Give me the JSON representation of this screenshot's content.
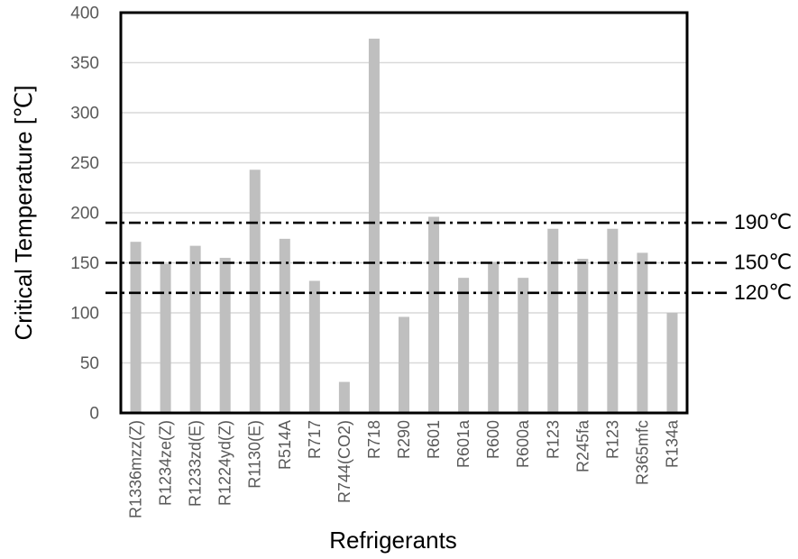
{
  "chart_data": {
    "type": "bar",
    "title": "",
    "xlabel": "Refrigerants",
    "ylabel": "Critical Temperature [℃]",
    "categories": [
      "R1336mzz(Z)",
      "R1234ze(Z)",
      "R1233zd(E)",
      "R1224yd(Z)",
      "R1130(E)",
      "R514A",
      "R717",
      "R744(CO2)",
      "R718",
      "R290",
      "R601",
      "R601a",
      "R600",
      "R600a",
      "R123",
      "R245fa",
      "R123",
      "R365mfc",
      "R134a"
    ],
    "values": [
      171,
      149,
      167,
      155,
      243,
      174,
      132,
      31,
      374,
      96,
      196,
      135,
      151,
      135,
      184,
      154,
      184,
      160,
      100
    ],
    "ylim": [
      0,
      400
    ],
    "yticks": [
      0,
      50,
      100,
      150,
      200,
      250,
      300,
      350,
      400
    ],
    "grid": "horizontal-gridlines-every-50",
    "legend": "none",
    "reference_lines": [
      {
        "value": 190,
        "label": "190℃"
      },
      {
        "value": 150,
        "label": "150℃"
      },
      {
        "value": 120,
        "label": "120℃"
      }
    ],
    "reference_line_style": "dash-dot",
    "colors": {
      "bar": "#BFBFBF",
      "gridline": "#D9D9D9",
      "plot_border": "#000000",
      "reference_line": "#000000",
      "tick_text": "#595959",
      "axis_title_text": "#000000",
      "reference_label_text": "#000000",
      "background": "#FFFFFF"
    }
  }
}
